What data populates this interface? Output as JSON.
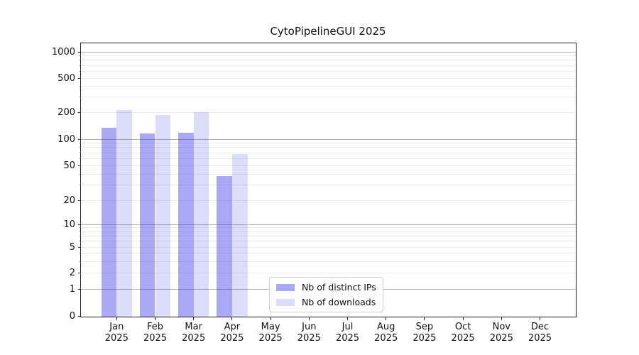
{
  "title": "CytoPipelineGUI 2025",
  "chart_data": {
    "type": "bar",
    "title": "CytoPipelineGUI 2025",
    "categories": [
      "Jan",
      "Feb",
      "Mar",
      "Apr",
      "May",
      "Jun",
      "Jul",
      "Aug",
      "Sep",
      "Oct",
      "Nov",
      "Dec"
    ],
    "category_year": "2025",
    "series": [
      {
        "name": "Nb of distinct IPs",
        "fill": "rgba(10,10,230,0.35)",
        "values": [
          134,
          115,
          117,
          38,
          null,
          null,
          null,
          null,
          null,
          null,
          null,
          null
        ]
      },
      {
        "name": "Nb of downloads",
        "fill": "rgba(10,10,230,0.14)",
        "values": [
          212,
          185,
          200,
          67,
          null,
          null,
          null,
          null,
          null,
          null,
          null,
          null
        ]
      }
    ],
    "y_ticks": [
      0,
      1,
      2,
      5,
      10,
      20,
      50,
      100,
      200,
      500,
      1000
    ],
    "y_scale": "symlog",
    "ylim": [
      0,
      1230
    ],
    "grid": "horizontal only: light minor log lines, gray major decade lines",
    "legend_position": "lower center inside plot"
  },
  "colors": {
    "bar_base": "#0a0ae6",
    "major_grid": "#b3b3b3",
    "minor_grid": "#ececec",
    "spine": "#222222",
    "text": "#111111",
    "legend_border": "#cccccc"
  }
}
